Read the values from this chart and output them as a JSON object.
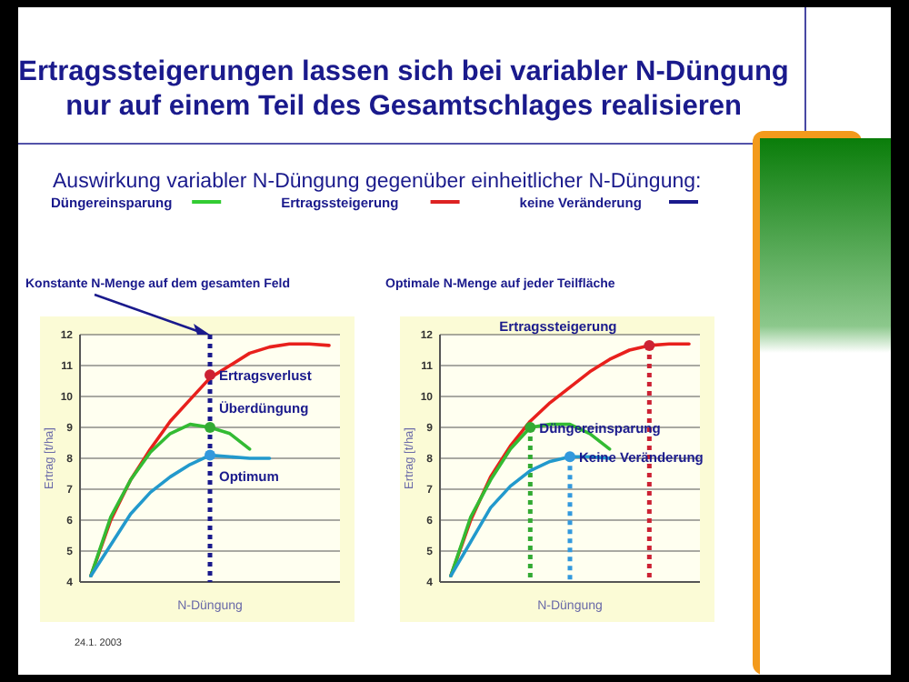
{
  "chart_data": [
    {
      "type": "other",
      "title": "Ertragssteigerungen lassen sich bei variabler N-Düngung nur auf einem Teil des Gesamtschlages realisieren",
      "subtitle": "Auswirkung variabler N-Düngung gegenüber einheitlicher N-Düngung:",
      "legend": "top left",
      "series": [
        {
          "name": "Düngereinsparung",
          "color": "#33cc33"
        },
        {
          "name": "Ertragssteigerung",
          "color": "#dd2222"
        },
        {
          "name": "keine Veränderung",
          "color": "#1a1a8c"
        }
      ],
      "annotations": [
        "24.1. 2003"
      ]
    },
    {
      "type": "line",
      "title": "Konstante N-Menge auf dem gesamten Feld",
      "xlabel": "N-Düngung",
      "ylabel": "Ertrag [t/ha]",
      "categories": [
        null,
        null,
        null,
        null,
        null,
        null,
        null,
        null,
        null,
        null,
        null,
        null,
        null
      ],
      "ylim": [
        4,
        12
      ],
      "yticks": [
        4,
        5,
        6,
        7,
        8,
        9,
        10,
        11,
        12
      ],
      "grid": "y",
      "marker": "none",
      "line_style": "solid",
      "series": [
        {
          "color": "#e8201c",
          "values": [
            4.2,
            6.0,
            7.3,
            8.3,
            9.2,
            9.9,
            10.6,
            11.0,
            11.4,
            11.6,
            11.7,
            11.7,
            11.65
          ]
        },
        {
          "color": "#33bb33",
          "values": [
            4.2,
            6.1,
            7.3,
            8.2,
            8.8,
            9.1,
            9.0,
            8.8,
            8.3,
            null,
            null,
            null,
            null
          ]
        },
        {
          "color": "#2299cc",
          "values": [
            4.2,
            5.2,
            6.2,
            6.9,
            7.4,
            7.8,
            8.1,
            8.05,
            8.0,
            8.0,
            null,
            null,
            null
          ]
        },
        {
          "type": "scatter",
          "marker": "circle",
          "color": "#cc2233",
          "values": [
            null,
            null,
            null,
            null,
            null,
            null,
            10.7,
            null,
            null,
            null,
            null,
            null,
            null
          ]
        },
        {
          "type": "scatter",
          "marker": "circle",
          "color": "#33aa33",
          "values": [
            null,
            null,
            null,
            null,
            null,
            null,
            9.0,
            null,
            null,
            null,
            null,
            null,
            null
          ]
        },
        {
          "type": "scatter",
          "marker": "circle",
          "color": "#3399dd",
          "values": [
            null,
            null,
            null,
            null,
            null,
            null,
            8.1,
            null,
            null,
            null,
            null,
            null,
            null
          ]
        }
      ],
      "annotations": [
        "Ertragsverlust",
        "Überdüngung",
        "Optimum"
      ]
    },
    {
      "type": "line",
      "title": "Optimale N-Menge auf jeder Teilfläche",
      "xlabel": "N-Düngung",
      "ylabel": "Ertrag [t/ha]",
      "categories": [
        null,
        null,
        null,
        null,
        null,
        null,
        null,
        null,
        null,
        null,
        null,
        null,
        null
      ],
      "ylim": [
        4,
        12
      ],
      "yticks": [
        4,
        5,
        6,
        7,
        8,
        9,
        10,
        11,
        12
      ],
      "grid": "y",
      "marker": "none",
      "line_style": "solid",
      "series": [
        {
          "color": "#e8201c",
          "values": [
            4.2,
            6.0,
            7.4,
            8.4,
            9.2,
            9.8,
            10.3,
            10.8,
            11.2,
            11.5,
            11.65,
            11.7,
            11.7
          ]
        },
        {
          "color": "#33bb33",
          "values": [
            4.2,
            6.1,
            7.3,
            8.3,
            9.0,
            9.1,
            9.1,
            8.8,
            8.3,
            null,
            null,
            null,
            null
          ]
        },
        {
          "color": "#2299cc",
          "values": [
            4.2,
            5.3,
            6.4,
            7.1,
            7.6,
            7.9,
            8.05,
            8.05,
            8.0,
            null,
            null,
            null,
            null
          ]
        },
        {
          "type": "scatter",
          "marker": "circle",
          "color": "#cc2233",
          "values": [
            null,
            null,
            null,
            null,
            null,
            null,
            null,
            null,
            null,
            null,
            11.65,
            null,
            null
          ]
        },
        {
          "type": "scatter",
          "marker": "circle",
          "color": "#33aa33",
          "values": [
            null,
            null,
            null,
            null,
            9.0,
            null,
            null,
            null,
            null,
            null,
            null,
            null,
            null
          ]
        },
        {
          "type": "scatter",
          "marker": "circle",
          "color": "#3399dd",
          "values": [
            null,
            null,
            null,
            null,
            null,
            null,
            8.05,
            null,
            null,
            null,
            null,
            null,
            null
          ]
        }
      ],
      "annotations": [
        "Ertragssteigerung",
        "Düngereinsparung",
        "Keine Veränderung"
      ]
    }
  ]
}
